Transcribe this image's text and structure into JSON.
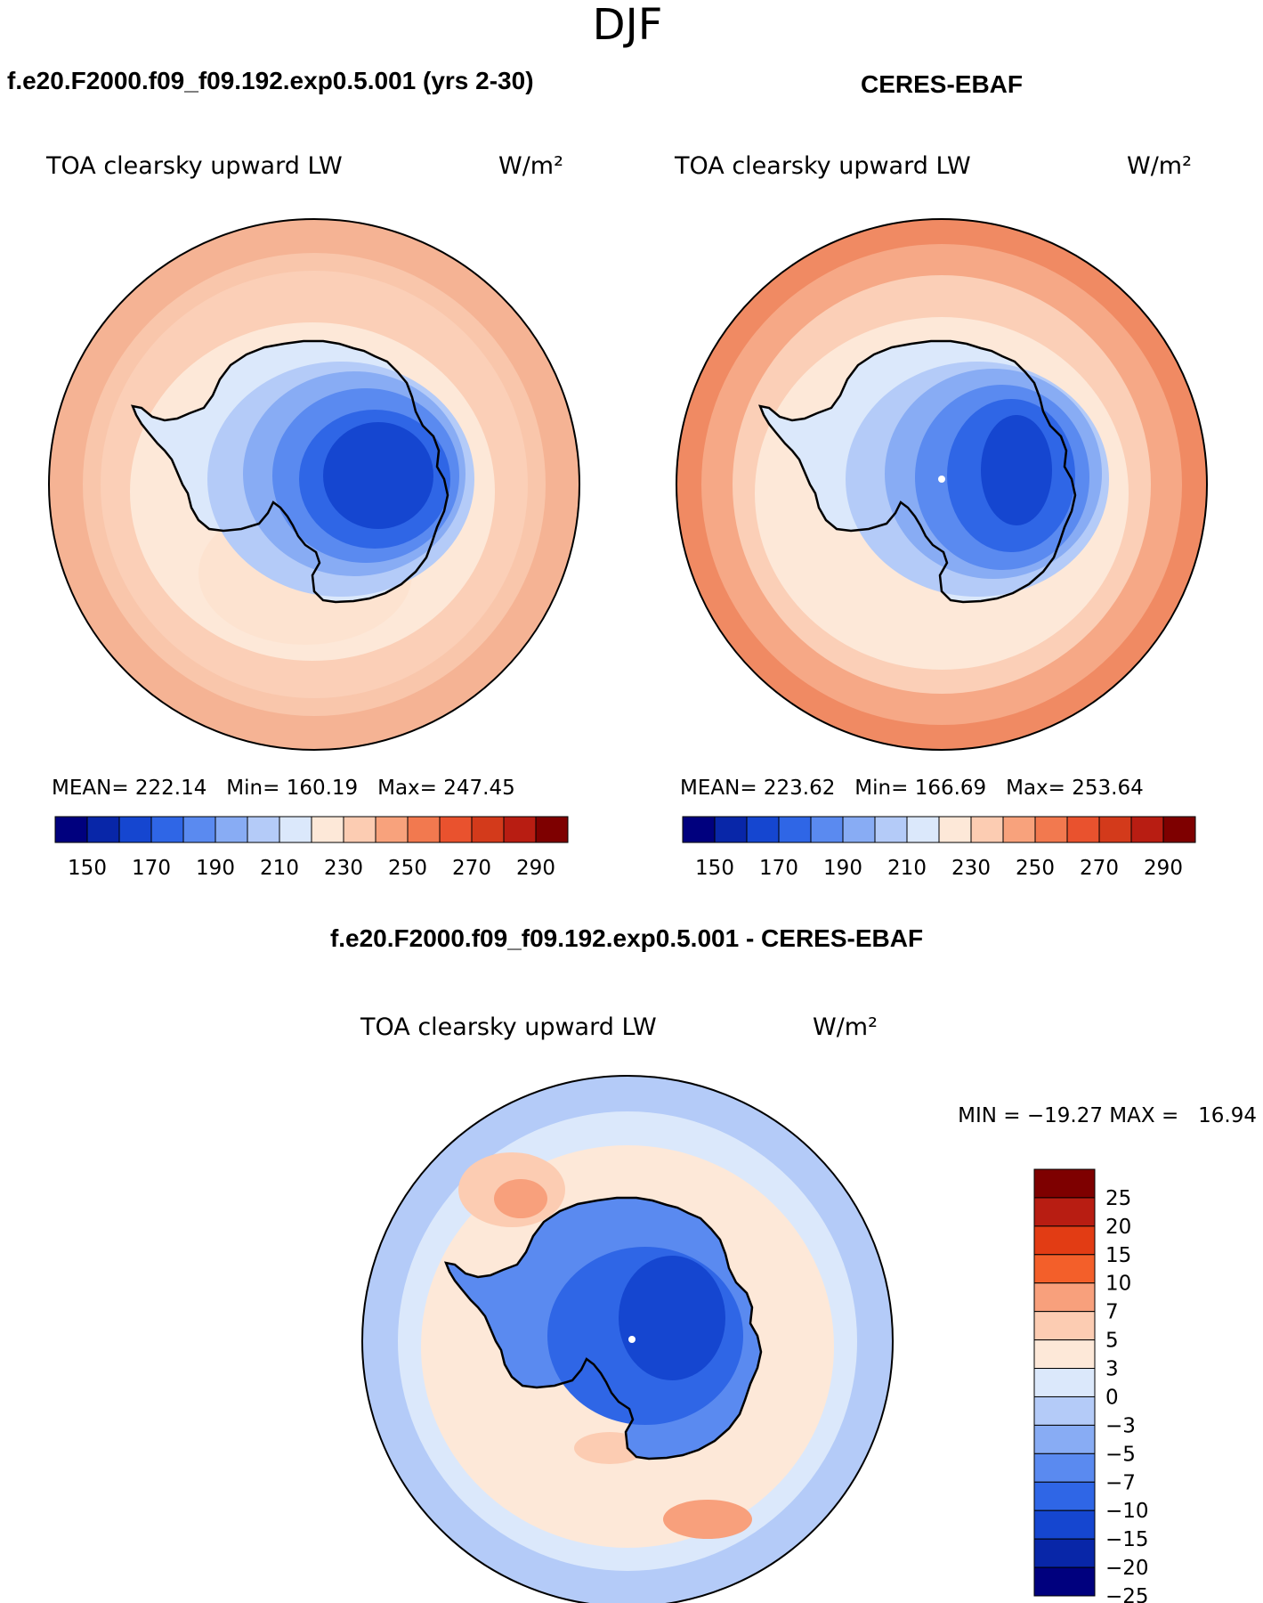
{
  "season": "DJF",
  "panels": [
    {
      "case_title": "f.e20.F2000.f09_f09.192.exp0.5.001 (yrs 2-30)",
      "variable": "TOA clearsky upward LW",
      "units": "W/m²",
      "stats": "MEAN= 222.14   Min= 160.19   Max= 247.45"
    },
    {
      "case_title": "CERES-EBAF",
      "variable": "TOA clearsky upward LW",
      "units": "W/m²",
      "stats": "MEAN= 223.62   Min= 166.69   Max= 253.64"
    },
    {
      "case_title": "f.e20.F2000.f09_f09.192.exp0.5.001 - CERES-EBAF",
      "variable": "TOA clearsky upward LW",
      "units": "W/m²",
      "stats": "MIN = −19.27 MAX =   16.94"
    }
  ],
  "colorbar_abs": {
    "colors": [
      "#00007e",
      "#0826a8",
      "#1546d0",
      "#2f66e6",
      "#5a8af0",
      "#88acf4",
      "#b4cbf8",
      "#dbe8fb",
      "#fde8d8",
      "#fcccb2",
      "#f8a27c",
      "#f2794f",
      "#e9522e",
      "#d33a1b",
      "#b81d12",
      "#7e0000"
    ],
    "tick_labels": [
      "150",
      "170",
      "190",
      "210",
      "230",
      "250",
      "270",
      "290"
    ]
  },
  "colorbar_diff": {
    "colors": [
      "#7e0000",
      "#b81d12",
      "#e23c14",
      "#f35f2a",
      "#f8a07c",
      "#fcccb2",
      "#fde8d8",
      "#dbe8fb",
      "#b4cbf8",
      "#88acf4",
      "#5a8af0",
      "#2f66e6",
      "#1546d0",
      "#0826a8",
      "#00007e"
    ],
    "tick_labels": [
      "25",
      "20",
      "15",
      "10",
      "7",
      "5",
      "3",
      "0",
      "−3",
      "−5",
      "−7",
      "−10",
      "−15",
      "−20",
      "−25"
    ]
  }
}
